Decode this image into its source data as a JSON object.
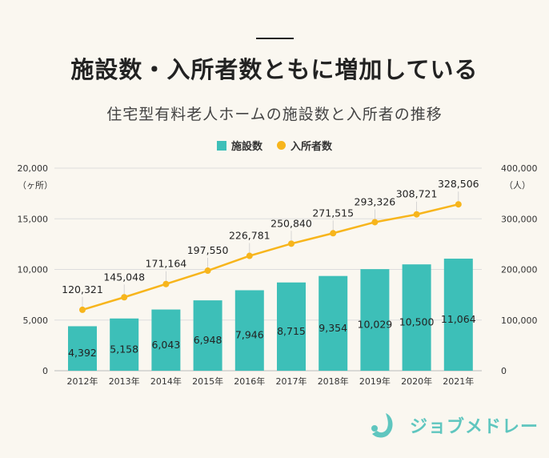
{
  "headline": "施設数・入所者数ともに増加している",
  "brand": "ジョブメドレー",
  "chart_data": {
    "type": "bar+line",
    "title": "住宅型有料老人ホームの施設数と入所者の推移",
    "categories": [
      "2012年",
      "2013年",
      "2014年",
      "2015年",
      "2016年",
      "2017年",
      "2018年",
      "2019年",
      "2020年",
      "2021年"
    ],
    "series": [
      {
        "name": "施設数",
        "type": "bar",
        "axis": "left",
        "color": "#3dbfb8",
        "values": [
          4392,
          5158,
          6043,
          6948,
          7946,
          8715,
          9354,
          10029,
          10500,
          11064
        ],
        "labels": [
          "4,392",
          "5,158",
          "6,043",
          "6,948",
          "7,946",
          "8,715",
          "9,354",
          "10,029",
          "10,500",
          "11,064"
        ]
      },
      {
        "name": "入所者数",
        "type": "line",
        "axis": "right",
        "color": "#f7b51c",
        "values": [
          120321,
          145048,
          171164,
          197550,
          226781,
          250840,
          271515,
          293326,
          308721,
          328506
        ],
        "labels": [
          "120,321",
          "145,048",
          "171,164",
          "197,550",
          "226,781",
          "250,840",
          "271,515",
          "293,326",
          "308,721",
          "328,506"
        ]
      }
    ],
    "y_left": {
      "range": [
        0,
        20000
      ],
      "ticks": [
        "0",
        "5,000",
        "10,000",
        "15,000",
        "20,000"
      ],
      "unit": "（ヶ所）"
    },
    "y_right": {
      "range": [
        0,
        400000
      ],
      "ticks": [
        "0",
        "100,000",
        "200,000",
        "300,000",
        "400,000"
      ],
      "unit": "（人）"
    },
    "grid": true,
    "legend": "top-center"
  }
}
